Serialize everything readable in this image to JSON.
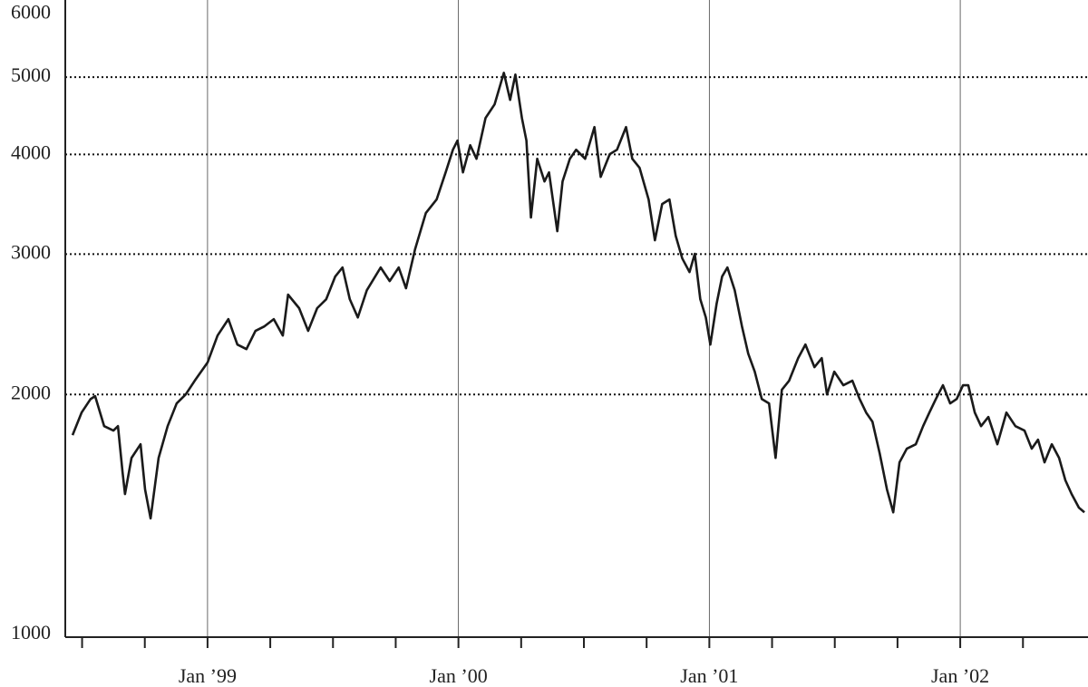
{
  "chart_data": {
    "type": "line",
    "log_y": true,
    "grid": true,
    "color": "#1a1a1a",
    "xlim": [
      1998.433,
      2002.502
    ],
    "xticks": [
      {
        "value": 1999,
        "label": "Jan ’99"
      },
      {
        "value": 2000,
        "label": "Jan ’00"
      },
      {
        "value": 2001,
        "label": "Jan ’01"
      },
      {
        "value": 2002,
        "label": "Jan ’02"
      }
    ],
    "xminorticks": [
      1998.5,
      1998.75,
      1999.25,
      1999.5,
      1999.75,
      2000.25,
      2000.5,
      2000.75,
      2001.25,
      2001.5,
      2001.75,
      2002.25
    ],
    "ylim": [
      1000,
      6200
    ],
    "yticks": [
      1000,
      2000,
      3000,
      4000,
      5000,
      6000
    ],
    "x": [
      1998.462,
      1998.498,
      1998.534,
      1998.552,
      1998.588,
      1998.625,
      1998.643,
      1998.661,
      1998.671,
      1998.697,
      1998.733,
      1998.751,
      1998.773,
      1998.805,
      1998.841,
      1998.877,
      1998.913,
      1998.949,
      1999.0,
      1999.04,
      1999.083,
      1999.119,
      1999.155,
      1999.191,
      1999.227,
      1999.264,
      1999.3,
      1999.321,
      1999.365,
      1999.401,
      1999.437,
      1999.473,
      1999.509,
      1999.538,
      1999.567,
      1999.599,
      1999.635,
      1999.69,
      1999.726,
      1999.762,
      1999.791,
      1999.827,
      1999.87,
      1999.913,
      1999.949,
      1999.978,
      1999.996,
      2000.018,
      2000.047,
      2000.072,
      2000.108,
      2000.144,
      2000.181,
      2000.206,
      2000.227,
      2000.253,
      2000.271,
      2000.289,
      2000.314,
      2000.343,
      2000.361,
      2000.394,
      2000.415,
      2000.444,
      2000.469,
      2000.505,
      2000.542,
      2000.567,
      2000.603,
      2000.632,
      2000.668,
      2000.693,
      2000.722,
      2000.758,
      2000.783,
      2000.812,
      2000.841,
      2000.866,
      2000.892,
      2000.921,
      2000.942,
      2000.964,
      2000.986,
      2001.004,
      2001.029,
      2001.051,
      2001.072,
      2001.101,
      2001.13,
      2001.155,
      2001.181,
      2001.209,
      2001.238,
      2001.264,
      2001.289,
      2001.318,
      2001.354,
      2001.383,
      2001.419,
      2001.448,
      2001.469,
      2001.498,
      2001.534,
      2001.57,
      2001.599,
      2001.625,
      2001.65,
      2001.679,
      2001.708,
      2001.733,
      2001.758,
      2001.787,
      2001.823,
      2001.852,
      2001.877,
      2001.903,
      2001.931,
      2001.96,
      2001.986,
      2002.011,
      2002.032,
      2002.058,
      2002.083,
      2002.112,
      2002.148,
      2002.184,
      2002.22,
      2002.256,
      2002.285,
      2002.31,
      2002.336,
      2002.365,
      2002.394,
      2002.419,
      2002.444,
      2002.473,
      2002.495
    ],
    "values": [
      1778,
      1898,
      1974,
      1990,
      1825,
      1802,
      1825,
      1601,
      1500,
      1665,
      1732,
      1520,
      1398,
      1665,
      1825,
      1949,
      2000,
      2081,
      2193,
      2371,
      2486,
      2310,
      2280,
      2403,
      2435,
      2486,
      2371,
      2668,
      2566,
      2403,
      2566,
      2633,
      2812,
      2886,
      2633,
      2498,
      2703,
      2886,
      2775,
      2886,
      2718,
      3041,
      3377,
      3512,
      3798,
      4055,
      4163,
      3798,
      4108,
      3950,
      4444,
      4622,
      5064,
      4683,
      5038,
      4444,
      4163,
      3334,
      3950,
      3700,
      3798,
      3205,
      3700,
      3950,
      4055,
      3950,
      4329,
      3749,
      4003,
      4055,
      4329,
      3950,
      3848,
      3512,
      3122,
      3466,
      3512,
      3162,
      2963,
      2848,
      3002,
      2633,
      2498,
      2310,
      2599,
      2812,
      2886,
      2703,
      2435,
      2250,
      2136,
      1974,
      1949,
      1665,
      2027,
      2081,
      2221,
      2310,
      2164,
      2221,
      2000,
      2136,
      2054,
      2081,
      1974,
      1898,
      1849,
      1687,
      1520,
      1423,
      1644,
      1710,
      1732,
      1825,
      1898,
      1974,
      2054,
      1949,
      1974,
      2054,
      2054,
      1898,
      1825,
      1874,
      1732,
      1898,
      1825,
      1802,
      1710,
      1755,
      1644,
      1732,
      1665,
      1561,
      1500,
      1442,
      1423
    ]
  }
}
